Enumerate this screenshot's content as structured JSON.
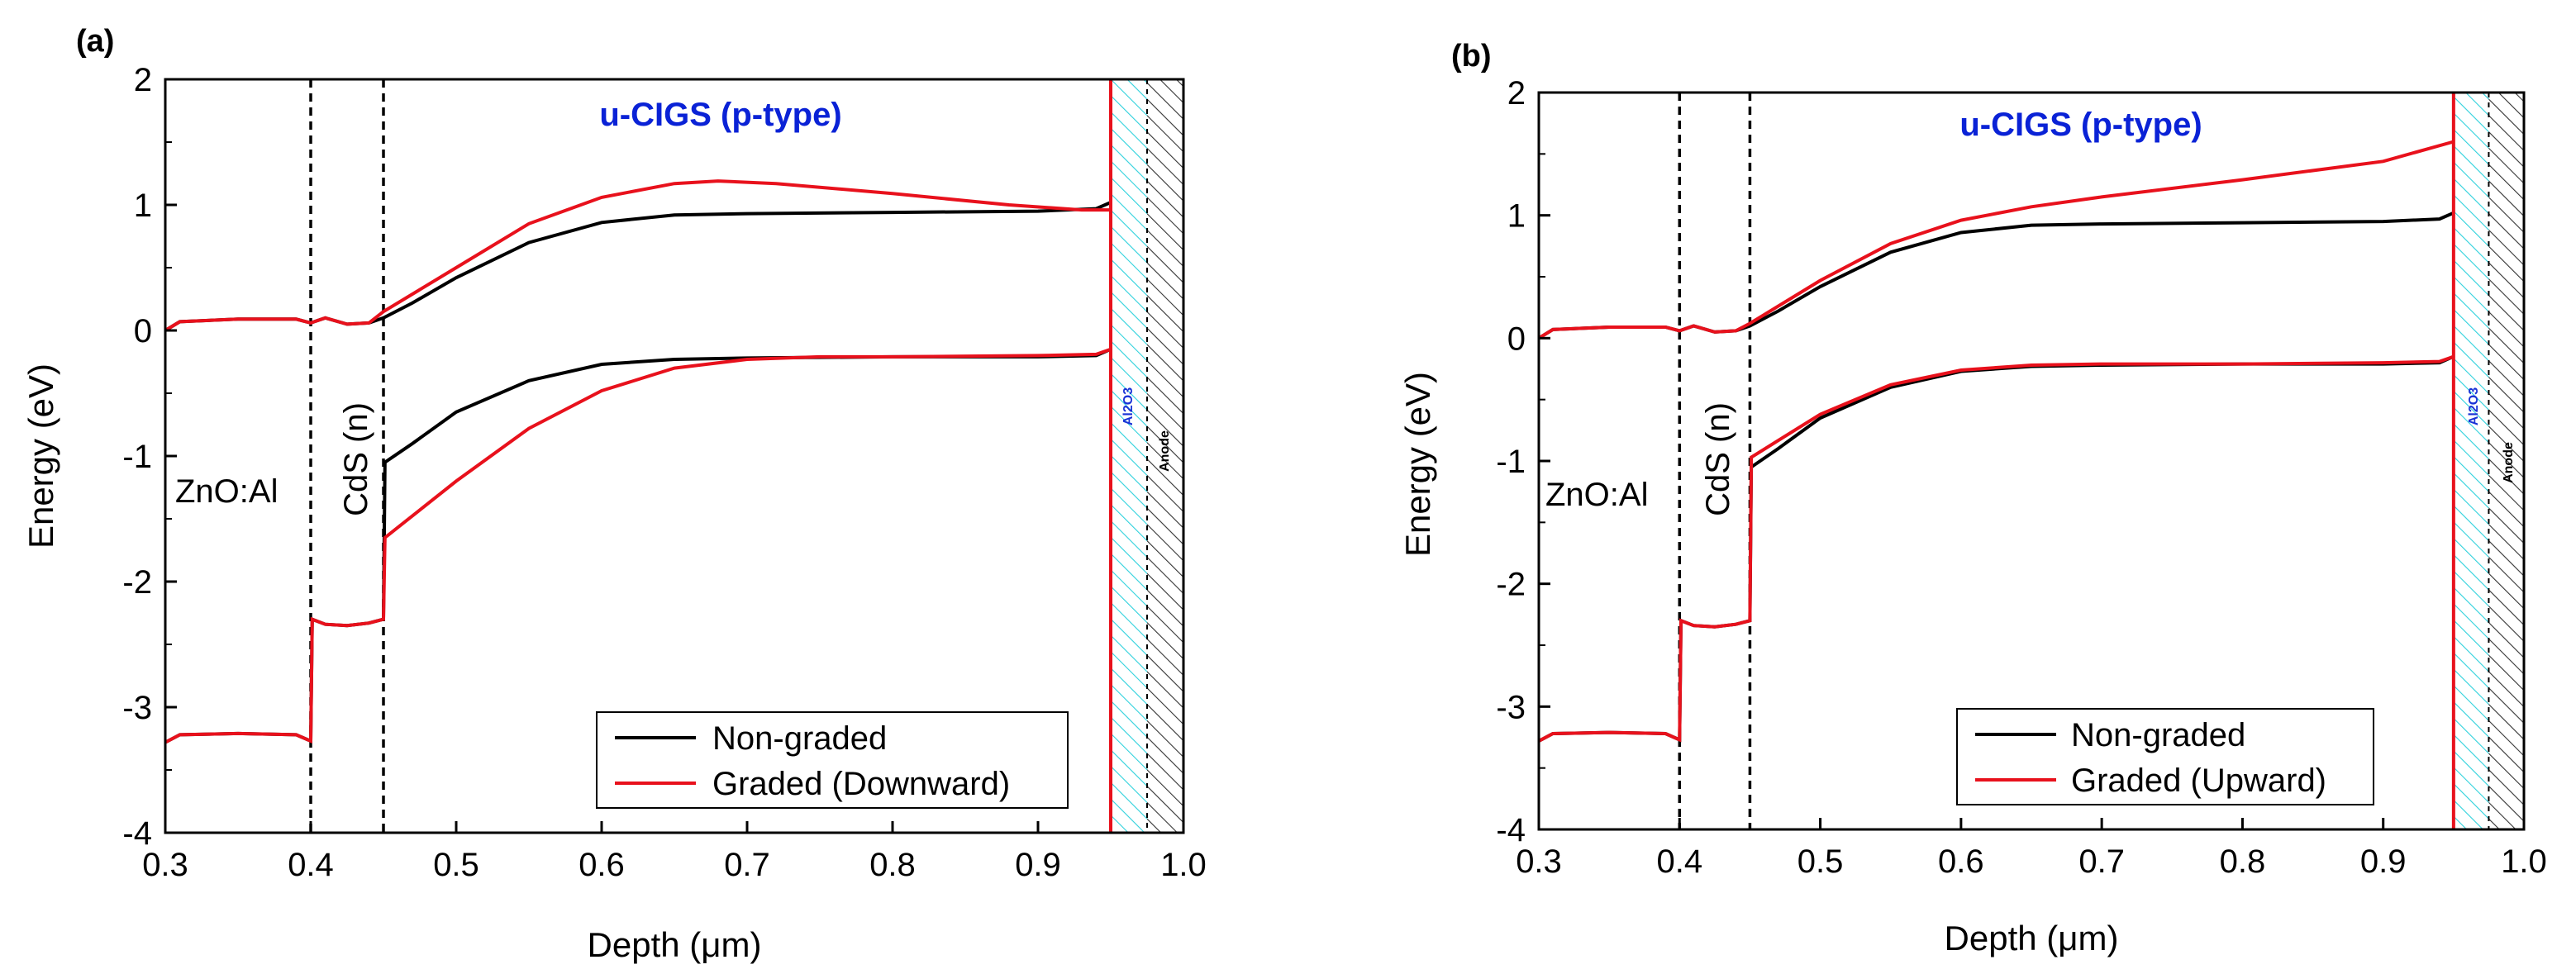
{
  "chart_data": [
    {
      "type": "line",
      "panel_label": "(a)",
      "title": "u-CIGS (p-type)",
      "xlabel": "Depth (μm)",
      "ylabel": "Energy (eV)",
      "xlim": [
        0.3,
        1.0
      ],
      "ylim": [
        -4,
        2
      ],
      "x_ticks": [
        "0.3",
        "0.4",
        "0.5",
        "0.6",
        "0.7",
        "0.8",
        "0.9",
        "1.0"
      ],
      "y_ticks": [
        "2",
        "1",
        "0",
        "-1",
        "-2",
        "-3",
        "-4"
      ],
      "region_labels": {
        "zno": "ZnO:Al",
        "cds": "CdS (n)",
        "al2o3": "Al2O3",
        "anode": "Anode"
      },
      "layer_boundaries": [
        0.4,
        0.45
      ],
      "hatch_regions": [
        {
          "name": "Al2O3",
          "from": 0.95,
          "to": 0.975,
          "color": "#2ed1dc"
        },
        {
          "name": "Anode",
          "from": 0.975,
          "to": 1.0,
          "color": "#444444"
        }
      ],
      "legend": {
        "position": "bottom-right",
        "entries": [
          "Non-graded",
          "Graded (Downward)"
        ]
      },
      "series": [
        {
          "name": "Non-graded",
          "band": "Ec",
          "color": "#000000",
          "x": [
            0.3,
            0.31,
            0.35,
            0.39,
            0.4,
            0.41,
            0.425,
            0.44,
            0.45,
            0.47,
            0.5,
            0.55,
            0.6,
            0.65,
            0.7,
            0.8,
            0.9,
            0.94,
            0.95
          ],
          "y": [
            0.0,
            0.07,
            0.09,
            0.09,
            0.06,
            0.1,
            0.05,
            0.06,
            0.1,
            0.22,
            0.42,
            0.7,
            0.86,
            0.92,
            0.93,
            0.94,
            0.95,
            0.97,
            1.02
          ]
        },
        {
          "name": "Non-graded",
          "band": "Ev",
          "color": "#000000",
          "x": [
            0.3,
            0.31,
            0.35,
            0.39,
            0.4,
            0.401,
            0.41,
            0.425,
            0.44,
            0.45,
            0.451,
            0.47,
            0.5,
            0.55,
            0.6,
            0.65,
            0.7,
            0.8,
            0.9,
            0.94,
            0.95
          ],
          "y": [
            -3.28,
            -3.22,
            -3.21,
            -3.22,
            -3.27,
            -2.3,
            -2.34,
            -2.35,
            -2.33,
            -2.3,
            -1.05,
            -0.9,
            -0.65,
            -0.4,
            -0.27,
            -0.23,
            -0.22,
            -0.21,
            -0.21,
            -0.2,
            -0.15
          ]
        },
        {
          "name": "Graded (Downward)",
          "band": "Ec",
          "color": "#e8111c",
          "x": [
            0.3,
            0.31,
            0.35,
            0.39,
            0.4,
            0.41,
            0.425,
            0.44,
            0.45,
            0.5,
            0.55,
            0.6,
            0.65,
            0.68,
            0.72,
            0.8,
            0.88,
            0.93,
            0.95
          ],
          "y": [
            0.0,
            0.07,
            0.09,
            0.09,
            0.06,
            0.1,
            0.05,
            0.06,
            0.15,
            0.5,
            0.85,
            1.06,
            1.17,
            1.19,
            1.17,
            1.09,
            1.0,
            0.96,
            0.96
          ]
        },
        {
          "name": "Graded (Downward)",
          "band": "Ev",
          "color": "#e8111c",
          "x": [
            0.3,
            0.31,
            0.35,
            0.39,
            0.4,
            0.401,
            0.41,
            0.425,
            0.44,
            0.45,
            0.451,
            0.5,
            0.55,
            0.6,
            0.65,
            0.7,
            0.75,
            0.8,
            0.9,
            0.94,
            0.95
          ],
          "y": [
            -3.28,
            -3.22,
            -3.21,
            -3.22,
            -3.27,
            -2.3,
            -2.34,
            -2.35,
            -2.33,
            -2.3,
            -1.65,
            -1.2,
            -0.78,
            -0.48,
            -0.3,
            -0.23,
            -0.21,
            -0.21,
            -0.2,
            -0.19,
            -0.15
          ]
        }
      ]
    },
    {
      "type": "line",
      "panel_label": "(b)",
      "title": "u-CIGS (p-type)",
      "xlabel": "Depth (μm)",
      "ylabel": "Energy (eV)",
      "xlim": [
        0.3,
        1.0
      ],
      "ylim": [
        -4,
        2
      ],
      "x_ticks": [
        "0.3",
        "0.4",
        "0.5",
        "0.6",
        "0.7",
        "0.8",
        "0.9",
        "1.0"
      ],
      "y_ticks": [
        "2",
        "1",
        "0",
        "-1",
        "-2",
        "-3",
        "-4"
      ],
      "region_labels": {
        "zno": "ZnO:Al",
        "cds": "CdS (n)",
        "al2o3": "Al2O3",
        "anode": "Anode"
      },
      "layer_boundaries": [
        0.4,
        0.45
      ],
      "hatch_regions": [
        {
          "name": "Al2O3",
          "from": 0.95,
          "to": 0.975,
          "color": "#2ed1dc"
        },
        {
          "name": "Anode",
          "from": 0.975,
          "to": 1.0,
          "color": "#444444"
        }
      ],
      "legend": {
        "position": "bottom-right",
        "entries": [
          "Non-graded",
          "Graded (Upward)"
        ]
      },
      "series": [
        {
          "name": "Non-graded",
          "band": "Ec",
          "color": "#000000",
          "x": [
            0.3,
            0.31,
            0.35,
            0.39,
            0.4,
            0.41,
            0.425,
            0.44,
            0.45,
            0.47,
            0.5,
            0.55,
            0.6,
            0.65,
            0.7,
            0.8,
            0.9,
            0.94,
            0.95
          ],
          "y": [
            0.0,
            0.07,
            0.09,
            0.09,
            0.06,
            0.1,
            0.05,
            0.06,
            0.1,
            0.22,
            0.42,
            0.7,
            0.86,
            0.92,
            0.93,
            0.94,
            0.95,
            0.97,
            1.02
          ]
        },
        {
          "name": "Non-graded",
          "band": "Ev",
          "color": "#000000",
          "x": [
            0.3,
            0.31,
            0.35,
            0.39,
            0.4,
            0.401,
            0.41,
            0.425,
            0.44,
            0.45,
            0.451,
            0.47,
            0.5,
            0.55,
            0.6,
            0.65,
            0.7,
            0.8,
            0.9,
            0.94,
            0.95
          ],
          "y": [
            -3.28,
            -3.22,
            -3.21,
            -3.22,
            -3.27,
            -2.3,
            -2.34,
            -2.35,
            -2.33,
            -2.3,
            -1.05,
            -0.9,
            -0.65,
            -0.4,
            -0.27,
            -0.23,
            -0.22,
            -0.21,
            -0.21,
            -0.2,
            -0.15
          ]
        },
        {
          "name": "Graded (Upward)",
          "band": "Ec",
          "color": "#e8111c",
          "x": [
            0.3,
            0.31,
            0.35,
            0.39,
            0.4,
            0.41,
            0.425,
            0.44,
            0.45,
            0.5,
            0.55,
            0.6,
            0.65,
            0.7,
            0.8,
            0.9,
            0.95
          ],
          "y": [
            0.0,
            0.07,
            0.09,
            0.09,
            0.06,
            0.1,
            0.05,
            0.06,
            0.12,
            0.47,
            0.77,
            0.96,
            1.07,
            1.15,
            1.29,
            1.44,
            1.6
          ]
        },
        {
          "name": "Graded (Upward)",
          "band": "Ev",
          "color": "#e8111c",
          "x": [
            0.3,
            0.31,
            0.35,
            0.39,
            0.4,
            0.401,
            0.41,
            0.425,
            0.44,
            0.45,
            0.451,
            0.5,
            0.55,
            0.6,
            0.65,
            0.7,
            0.8,
            0.9,
            0.94,
            0.95
          ],
          "y": [
            -3.28,
            -3.22,
            -3.21,
            -3.22,
            -3.27,
            -2.3,
            -2.34,
            -2.35,
            -2.33,
            -2.3,
            -0.97,
            -0.62,
            -0.38,
            -0.26,
            -0.22,
            -0.21,
            -0.21,
            -0.2,
            -0.19,
            -0.15
          ]
        }
      ]
    }
  ]
}
